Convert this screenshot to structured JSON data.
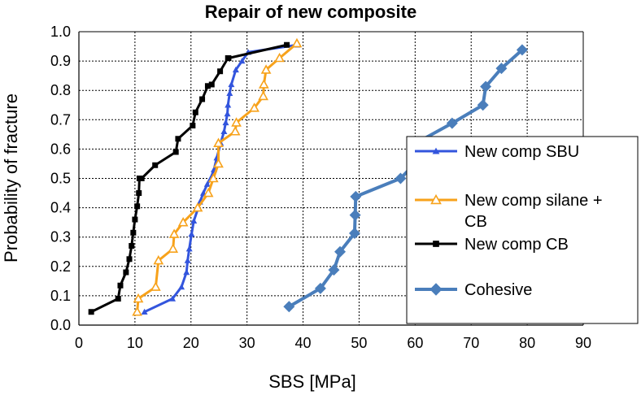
{
  "chart_data": {
    "type": "scatter",
    "title": "Repair of new composite",
    "xlabel": "SBS [MPa]",
    "ylabel": "Probability of fracture",
    "xlim": [
      0,
      90
    ],
    "ylim": [
      0,
      1.0
    ],
    "x_ticks": [
      "0",
      "10",
      "20",
      "30",
      "40",
      "50",
      "60",
      "70",
      "80",
      "90"
    ],
    "y_ticks": [
      "0.0",
      "0.1",
      "0.2",
      "0.3",
      "0.4",
      "0.5",
      "0.6",
      "0.7",
      "0.8",
      "0.9",
      "1.0"
    ],
    "grid": true,
    "legend_position": "right",
    "series": [
      {
        "name": "New comp SBU",
        "color": "#3355dd",
        "marker": "triangle-filled",
        "x": [
          11.7,
          16.7,
          18.3,
          19.2,
          19.4,
          19.7,
          20.1,
          20.5,
          21.3,
          21.6,
          22.2,
          22.9,
          23.5,
          24.1,
          24.6,
          25.3,
          25.9,
          26.2,
          26.5,
          26.6,
          26.9,
          27.2,
          28.0,
          29.1,
          30.2,
          39.0
        ],
        "y": [
          0.045,
          0.09,
          0.13,
          0.18,
          0.22,
          0.26,
          0.31,
          0.355,
          0.4,
          0.42,
          0.45,
          0.48,
          0.5,
          0.53,
          0.57,
          0.62,
          0.66,
          0.69,
          0.72,
          0.75,
          0.79,
          0.82,
          0.87,
          0.9,
          0.93,
          0.955
        ]
      },
      {
        "name": "New comp silane + CB",
        "color": "#f7a21b",
        "marker": "triangle-open",
        "x": [
          10.4,
          10.6,
          13.7,
          14.2,
          16.8,
          17.0,
          18.6,
          21.2,
          23.1,
          24.0,
          24.9,
          24.9,
          27.9,
          28.1,
          31.3,
          32.9,
          33.0,
          33.4,
          35.8,
          38.9
        ],
        "y": [
          0.045,
          0.09,
          0.13,
          0.22,
          0.26,
          0.31,
          0.35,
          0.4,
          0.45,
          0.5,
          0.55,
          0.62,
          0.66,
          0.69,
          0.74,
          0.78,
          0.82,
          0.87,
          0.91,
          0.96
        ]
      },
      {
        "name": "New comp CB",
        "color": "#000000",
        "marker": "square",
        "x": [
          2.2,
          7.0,
          7.4,
          8.4,
          9.0,
          9.4,
          9.7,
          10.0,
          10.4,
          10.7,
          10.8,
          11.0,
          11.2,
          13.6,
          17.3,
          17.7,
          20.3,
          20.8,
          22.0,
          23.0,
          23.7,
          25.2,
          26.6,
          26.7,
          37.1
        ],
        "y": [
          0.045,
          0.09,
          0.135,
          0.18,
          0.225,
          0.27,
          0.315,
          0.36,
          0.405,
          0.45,
          0.5,
          0.5,
          0.5,
          0.545,
          0.59,
          0.635,
          0.68,
          0.725,
          0.77,
          0.815,
          0.82,
          0.865,
          0.91,
          0.91,
          0.955
        ]
      },
      {
        "name": "Cohesive",
        "color": "#4a7ebb",
        "marker": "diamond",
        "x": [
          37.5,
          43.1,
          45.5,
          46.6,
          49.2,
          49.3,
          49.4,
          57.4,
          60.6,
          60.6,
          66.6,
          72.1,
          72.6,
          75.4,
          79.1
        ],
        "y": [
          0.063,
          0.125,
          0.188,
          0.25,
          0.313,
          0.375,
          0.438,
          0.5,
          0.563,
          0.625,
          0.688,
          0.75,
          0.813,
          0.875,
          0.938
        ]
      }
    ],
    "legend": [
      {
        "lines": [
          "New comp SBU"
        ]
      },
      {
        "lines": [
          "New comp silane +",
          "CB"
        ]
      },
      {
        "lines": [
          "New comp CB"
        ]
      },
      {
        "lines": [
          "Cohesive"
        ]
      }
    ]
  }
}
